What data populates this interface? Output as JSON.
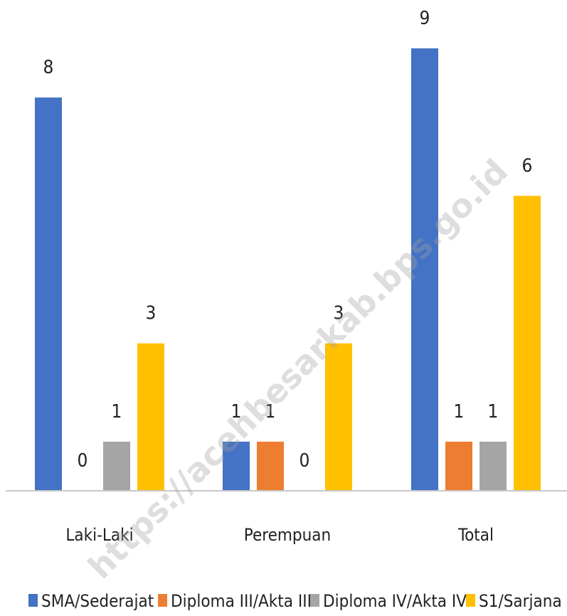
{
  "watermark": "https://acehbesarkab.bps.go.id",
  "chart_data": {
    "type": "bar",
    "categories": [
      "Laki-Laki",
      "Perempuan",
      "Total"
    ],
    "series": [
      {
        "name": "SMA/Sederajat",
        "values": [
          8,
          1,
          9
        ],
        "color": "#4472C4"
      },
      {
        "name": "Diploma III/Akta III",
        "values": [
          0,
          1,
          1
        ],
        "color": "#ED7D31"
      },
      {
        "name": "Diploma IV/Akta IV",
        "values": [
          1,
          0,
          1
        ],
        "color": "#A5A5A5"
      },
      {
        "name": "S1/Sarjana",
        "values": [
          3,
          3,
          6
        ],
        "color": "#FFC000"
      }
    ],
    "ylim": [
      0,
      9
    ],
    "grid": false,
    "legend_position": "bottom",
    "data_labels": true
  }
}
